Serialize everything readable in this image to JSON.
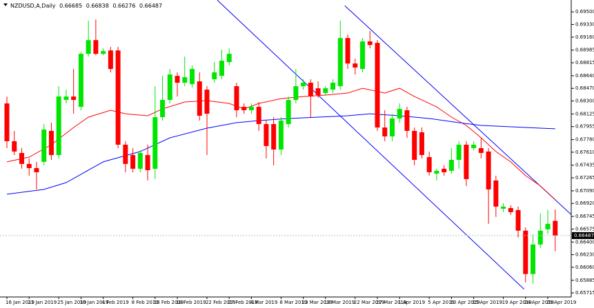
{
  "chart_data": {
    "type": "candlestick",
    "title": "NZDUSD,A,Daily",
    "up_color": "#00e600",
    "down_color": "#ff0000",
    "categories": [
      "16 Jan 2019",
      null,
      null,
      "21 Jan 2019",
      null,
      null,
      null,
      "25 Jan 2019",
      null,
      null,
      "30 Jan 2019",
      null,
      null,
      "4 Feb 2019",
      null,
      null,
      null,
      "8 Feb 2019",
      null,
      null,
      "13 Feb 2019",
      null,
      null,
      "18 Feb 2019",
      null,
      null,
      null,
      "22 Feb 2019",
      null,
      null,
      "27 Feb 2019",
      null,
      null,
      "4 Mar 2019",
      null,
      null,
      null,
      "8 Mar 2019",
      null,
      null,
      "13 Mar 2019",
      null,
      null,
      "18 Mar 2019",
      null,
      null,
      null,
      "22 Mar 2019",
      null,
      null,
      "27 Mar 2019",
      null,
      null,
      "1 Apr 2019",
      null,
      null,
      null,
      "5 Apr 2019",
      null,
      null,
      "10 Apr 2019",
      null,
      null,
      "15 Apr 2019",
      null,
      null,
      null,
      "19 Apr 2019",
      null,
      null,
      "24 Apr 2019",
      null,
      null,
      "29 Apr 2019",
      null
    ],
    "open": [
      0.68267,
      0.67758,
      0.676,
      0.67452,
      0.67396,
      0.6748,
      0.67897,
      0.67572,
      0.68314,
      0.6836,
      0.68221,
      0.68935,
      0.6912,
      0.68935,
      0.68981,
      0.68981,
      0.67711,
      0.67572,
      0.67387,
      0.67572,
      0.67387,
      0.68082,
      0.68314,
      0.68638,
      0.68546,
      0.68527,
      0.68564,
      0.68453,
      0.68592,
      0.68638,
      0.68824,
      0.68499,
      0.68221,
      0.68175,
      0.68221,
      0.67989,
      0.67989,
      0.67646,
      0.67989,
      0.68314,
      0.68499,
      0.68546,
      0.68471,
      0.68407,
      0.68453,
      0.68499,
      0.69148,
      0.68805,
      0.68731,
      0.69102,
      0.69083,
      0.67943,
      0.67823,
      0.68064,
      0.68175,
      0.67897,
      0.67878,
      0.67544,
      0.67322,
      0.67387,
      0.67359,
      0.67507,
      0.67711,
      0.67665,
      0.67665,
      0.67619,
      0.67229,
      0.66849,
      0.66858,
      0.66831,
      0.66553,
      0.65969,
      0.66367,
      0.66571,
      0.66685
    ],
    "high": [
      0.6836,
      0.67897,
      0.67665,
      0.67526,
      0.6748,
      0.67989,
      0.68008,
      0.68499,
      0.68453,
      0.68731,
      0.68963,
      0.6938,
      0.69398,
      0.69009,
      0.69028,
      0.69028,
      0.67758,
      0.67665,
      0.67637,
      0.67711,
      0.68499,
      0.68638,
      0.68731,
      0.68685,
      0.68898,
      0.68777,
      0.68685,
      0.68499,
      0.68824,
      0.68991,
      0.69009,
      0.68546,
      0.68267,
      0.68267,
      0.68286,
      0.68036,
      0.68082,
      0.68082,
      0.6836,
      0.68731,
      0.68592,
      0.68592,
      0.68564,
      0.68499,
      0.68592,
      0.6938,
      0.69194,
      0.6887,
      0.69148,
      0.69241,
      0.6912,
      0.68175,
      0.68128,
      0.68267,
      0.68221,
      0.67943,
      0.67943,
      0.67619,
      0.67387,
      0.67433,
      0.67665,
      0.67758,
      0.67758,
      0.67758,
      0.67804,
      0.67665,
      0.67294,
      0.66923,
      0.66896,
      0.66877,
      0.66599,
      0.66506,
      0.66784,
      0.66831,
      0.66838
    ],
    "low": [
      0.67665,
      0.67572,
      0.67387,
      0.67294,
      0.67109,
      0.67433,
      0.67507,
      0.67526,
      0.68267,
      0.68128,
      0.68175,
      0.68898,
      0.68916,
      0.68916,
      0.68685,
      0.67665,
      0.6734,
      0.6734,
      0.6734,
      0.67229,
      0.67248,
      0.68036,
      0.68267,
      0.6836,
      0.68499,
      0.68481,
      0.68036,
      0.67572,
      0.68546,
      0.68592,
      0.68777,
      0.68082,
      0.68128,
      0.68128,
      0.67897,
      0.67526,
      0.67433,
      0.67572,
      0.67943,
      0.68267,
      0.68453,
      0.68082,
      0.68342,
      0.68379,
      0.68407,
      0.68453,
      0.68731,
      0.68657,
      0.68685,
      0.69009,
      0.67897,
      0.67758,
      0.67758,
      0.68008,
      0.67804,
      0.67433,
      0.67526,
      0.67294,
      0.67229,
      0.67294,
      0.67322,
      0.67387,
      0.67155,
      0.67637,
      0.67526,
      0.66645,
      0.66738,
      0.66803,
      0.66766,
      0.6646,
      0.65857,
      0.65839,
      0.66321,
      0.66506,
      0.66276
    ],
    "close": [
      0.67758,
      0.67619,
      0.67452,
      0.67396,
      0.6734,
      0.67915,
      0.67572,
      0.6836,
      0.6836,
      0.68314,
      0.68935,
      0.6912,
      0.68935,
      0.68972,
      0.68731,
      0.67711,
      0.67452,
      0.67387,
      0.676,
      0.67368,
      0.68082,
      0.68314,
      0.68657,
      0.68546,
      0.6862,
      0.68731,
      0.68101,
      0.68128,
      0.68685,
      0.68842,
      0.68935,
      0.68175,
      0.68175,
      0.68221,
      0.67989,
      0.67693,
      0.67646,
      0.68036,
      0.68314,
      0.68499,
      0.68546,
      0.6836,
      0.68379,
      0.68471,
      0.68546,
      0.69148,
      0.68805,
      0.6875,
      0.69102,
      0.69055,
      0.67943,
      0.67823,
      0.68064,
      0.68193,
      0.67897,
      0.67507,
      0.67572,
      0.6734,
      0.67359,
      0.6734,
      0.67507,
      0.67711,
      0.67248,
      0.67711,
      0.676,
      0.67109,
      0.66877,
      0.66877,
      0.66803,
      0.66553,
      0.65969,
      0.66367,
      0.66553,
      0.66645,
      0.66487
    ],
    "lines": [
      {
        "color": "#ff0000",
        "x": [
          0,
          3,
          6,
          9,
          11,
          14,
          16,
          19,
          21,
          24,
          27,
          30,
          32,
          34,
          37,
          40,
          43,
          46,
          48,
          51,
          53,
          55,
          58,
          60,
          62,
          64,
          66,
          68,
          70,
          72,
          74
        ],
        "values": [
          0.6748,
          0.67544,
          0.67711,
          0.67943,
          0.68082,
          0.68175,
          0.68128,
          0.68101,
          0.68193,
          0.68286,
          0.68305,
          0.68267,
          0.68193,
          0.68267,
          0.68332,
          0.6836,
          0.68379,
          0.68407,
          0.68471,
          0.68407,
          0.68471,
          0.6836,
          0.68221,
          0.68082,
          0.67971,
          0.67804,
          0.67619,
          0.6748,
          0.67294,
          0.67155,
          0.6697
        ]
      },
      {
        "color": "#0000ff",
        "x": [
          0,
          5,
          8,
          13,
          18,
          22,
          27,
          31,
          34,
          38,
          42,
          46,
          49,
          53,
          57,
          61,
          64,
          68,
          72,
          74
        ],
        "values": [
          0.67044,
          0.67109,
          0.67201,
          0.6748,
          0.67619,
          0.67804,
          0.67934,
          0.68008,
          0.68036,
          0.68064,
          0.68082,
          0.68101,
          0.68128,
          0.68101,
          0.68064,
          0.68008,
          0.67971,
          0.67952,
          0.67934,
          0.67925
        ]
      }
    ],
    "trendlines": [
      {
        "color": "#0000ff",
        "x": [
          28.4,
          69.8
        ],
        "values": [
          0.69658,
          0.65765
        ]
      },
      {
        "color": "#0000ff",
        "x": [
          45.6,
          76.2
        ],
        "values": [
          0.69584,
          0.66766
        ]
      }
    ],
    "ylim": [
      0.6566,
      0.6966
    ],
    "yticks": [
      {
        "value": 0.695,
        "label": "0.69500"
      },
      {
        "value": 0.6933,
        "label": "0.69330"
      },
      {
        "value": 0.6916,
        "label": "0.69160"
      },
      {
        "value": 0.68985,
        "label": "0.68985"
      },
      {
        "value": 0.68815,
        "label": "0.68815"
      },
      {
        "value": 0.6864,
        "label": "0.68640"
      },
      {
        "value": 0.6847,
        "label": "0.68470"
      },
      {
        "value": 0.683,
        "label": "0.68300"
      },
      {
        "value": 0.68125,
        "label": "0.68125"
      },
      {
        "value": 0.67955,
        "label": "0.67955"
      },
      {
        "value": 0.6778,
        "label": "0.67780"
      },
      {
        "value": 0.6761,
        "label": "0.67610"
      },
      {
        "value": 0.67435,
        "label": "0.67435"
      },
      {
        "value": 0.67265,
        "label": "0.67265"
      },
      {
        "value": 0.6709,
        "label": "0.67090"
      },
      {
        "value": 0.6692,
        "label": "0.66920"
      },
      {
        "value": 0.66745,
        "label": "0.66745"
      },
      {
        "value": 0.66575,
        "label": "0.66575"
      },
      {
        "value": 0.664,
        "label": "0.66400"
      },
      {
        "value": 0.6623,
        "label": "0.66230"
      },
      {
        "value": 0.6606,
        "label": "0.66060"
      },
      {
        "value": 0.65885,
        "label": "0.65885"
      },
      {
        "value": 0.65715,
        "label": "0.65715"
      }
    ]
  }
}
